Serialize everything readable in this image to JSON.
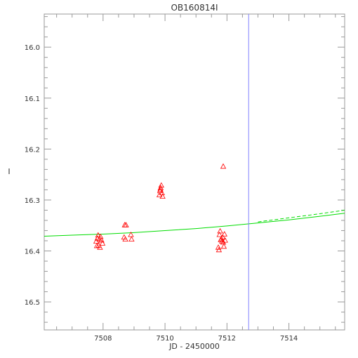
{
  "chart_data": {
    "type": "scatter",
    "title": "OB160814I",
    "xlabel": "JD - 2450000",
    "ylabel": "I",
    "xlim": [
      7506.1,
      7515.8
    ],
    "ylim": [
      16.555,
      15.935
    ],
    "y_inverted": true,
    "x_ticks": [
      "7508",
      "7510",
      "7512",
      "7514"
    ],
    "y_ticks": [
      "16.0",
      "16.1",
      "16.2",
      "16.3",
      "16.4",
      "16.5"
    ],
    "grid": false,
    "legend": "none",
    "colors": {
      "points": "#ff0000",
      "model": "#00dd00",
      "marker_line": "#8080ff",
      "axes": "#999999",
      "text": "#333333"
    },
    "points": [
      {
        "x": 7507.78,
        "y": 16.381
      },
      {
        "x": 7507.82,
        "y": 16.375
      },
      {
        "x": 7507.84,
        "y": 16.369
      },
      {
        "x": 7507.86,
        "y": 16.389
      },
      {
        "x": 7507.88,
        "y": 16.377
      },
      {
        "x": 7507.9,
        "y": 16.393
      },
      {
        "x": 7507.92,
        "y": 16.372
      },
      {
        "x": 7507.95,
        "y": 16.379
      },
      {
        "x": 7507.98,
        "y": 16.385
      },
      {
        "x": 7507.8,
        "y": 16.39
      },
      {
        "x": 7508.7,
        "y": 16.349
      },
      {
        "x": 7508.74,
        "y": 16.349
      },
      {
        "x": 7508.68,
        "y": 16.373
      },
      {
        "x": 7508.72,
        "y": 16.377
      },
      {
        "x": 7508.9,
        "y": 16.368
      },
      {
        "x": 7508.92,
        "y": 16.377
      },
      {
        "x": 7509.82,
        "y": 16.29
      },
      {
        "x": 7509.84,
        "y": 16.282
      },
      {
        "x": 7509.86,
        "y": 16.276
      },
      {
        "x": 7509.88,
        "y": 16.271
      },
      {
        "x": 7509.9,
        "y": 16.286
      },
      {
        "x": 7509.92,
        "y": 16.293
      },
      {
        "x": 7509.85,
        "y": 16.279
      },
      {
        "x": 7511.72,
        "y": 16.393
      },
      {
        "x": 7511.74,
        "y": 16.398
      },
      {
        "x": 7511.76,
        "y": 16.368
      },
      {
        "x": 7511.78,
        "y": 16.361
      },
      {
        "x": 7511.8,
        "y": 16.378
      },
      {
        "x": 7511.82,
        "y": 16.376
      },
      {
        "x": 7511.84,
        "y": 16.381
      },
      {
        "x": 7511.86,
        "y": 16.373
      },
      {
        "x": 7511.88,
        "y": 16.383
      },
      {
        "x": 7511.9,
        "y": 16.391
      },
      {
        "x": 7511.92,
        "y": 16.367
      },
      {
        "x": 7511.94,
        "y": 16.379
      },
      {
        "x": 7511.88,
        "y": 16.234
      }
    ],
    "model_solid": [
      {
        "x": 7506.1,
        "y": 16.371
      },
      {
        "x": 7507.0,
        "y": 16.369
      },
      {
        "x": 7508.0,
        "y": 16.367
      },
      {
        "x": 7509.0,
        "y": 16.364
      },
      {
        "x": 7510.0,
        "y": 16.36
      },
      {
        "x": 7511.0,
        "y": 16.356
      },
      {
        "x": 7512.0,
        "y": 16.351
      },
      {
        "x": 7513.0,
        "y": 16.345
      },
      {
        "x": 7514.0,
        "y": 16.339
      },
      {
        "x": 7515.0,
        "y": 16.332
      },
      {
        "x": 7515.8,
        "y": 16.326
      }
    ],
    "model_dashed": [
      {
        "x": 7513.0,
        "y": 16.343
      },
      {
        "x": 7514.0,
        "y": 16.335
      },
      {
        "x": 7515.0,
        "y": 16.327
      },
      {
        "x": 7515.8,
        "y": 16.32
      }
    ],
    "vertical_line_x": 7512.7
  }
}
